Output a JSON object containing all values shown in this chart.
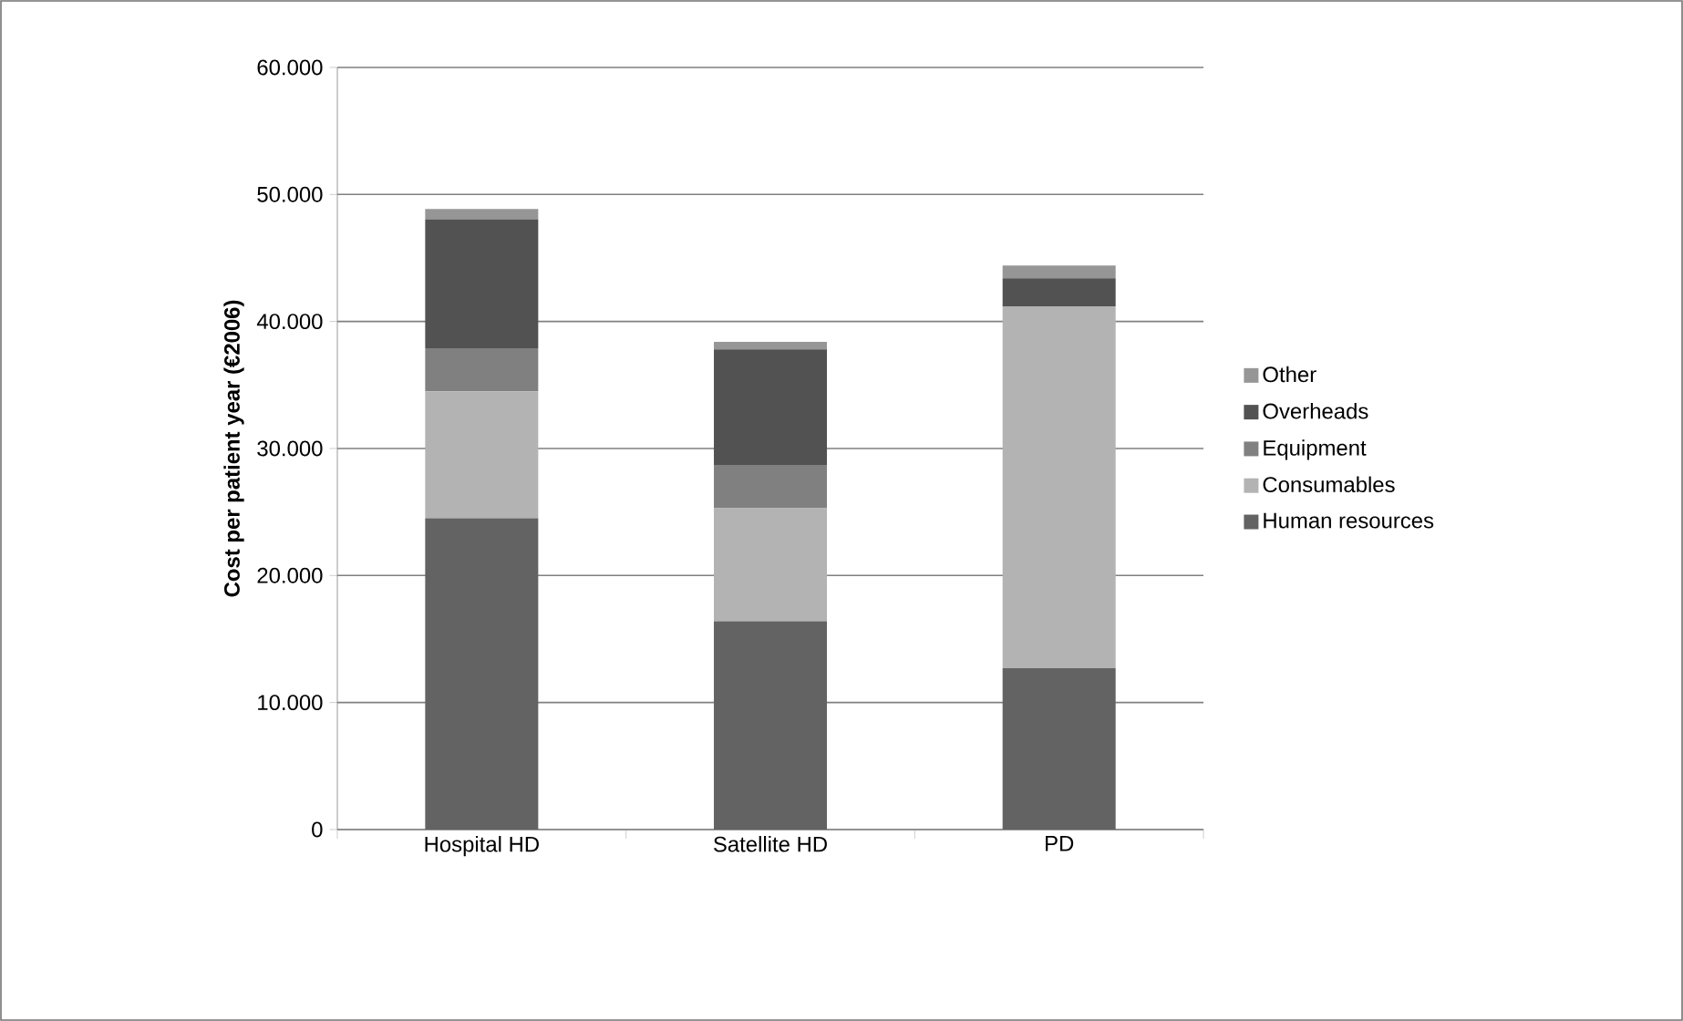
{
  "chart_data": {
    "type": "bar",
    "stacked": true,
    "ylabel": "Cost per patient year (€2006)",
    "categories": [
      "Hospital HD",
      "Satellite HD",
      "PD"
    ],
    "series": [
      {
        "name": "Human resources",
        "color": "#636363",
        "values": [
          24500,
          16400,
          12700
        ]
      },
      {
        "name": "Consumables",
        "color": "#b3b3b3",
        "values": [
          10000,
          8900,
          28500
        ]
      },
      {
        "name": "Equipment",
        "color": "#808080",
        "values": [
          3400,
          3400,
          0
        ]
      },
      {
        "name": "Overheads",
        "color": "#525252",
        "values": [
          10150,
          9100,
          2200
        ]
      },
      {
        "name": "Other",
        "color": "#969696",
        "values": [
          800,
          600,
          1000
        ]
      }
    ],
    "ylim": [
      0,
      60000
    ],
    "yticks": [
      {
        "value": 0,
        "label": "0"
      },
      {
        "value": 10000,
        "label": "10.000"
      },
      {
        "value": 20000,
        "label": "20.000"
      },
      {
        "value": 30000,
        "label": "30.000"
      },
      {
        "value": 40000,
        "label": "40.000"
      },
      {
        "value": 50000,
        "label": "50.000"
      },
      {
        "value": 60000,
        "label": "60.000"
      }
    ],
    "grid": "y",
    "legend": "right"
  }
}
